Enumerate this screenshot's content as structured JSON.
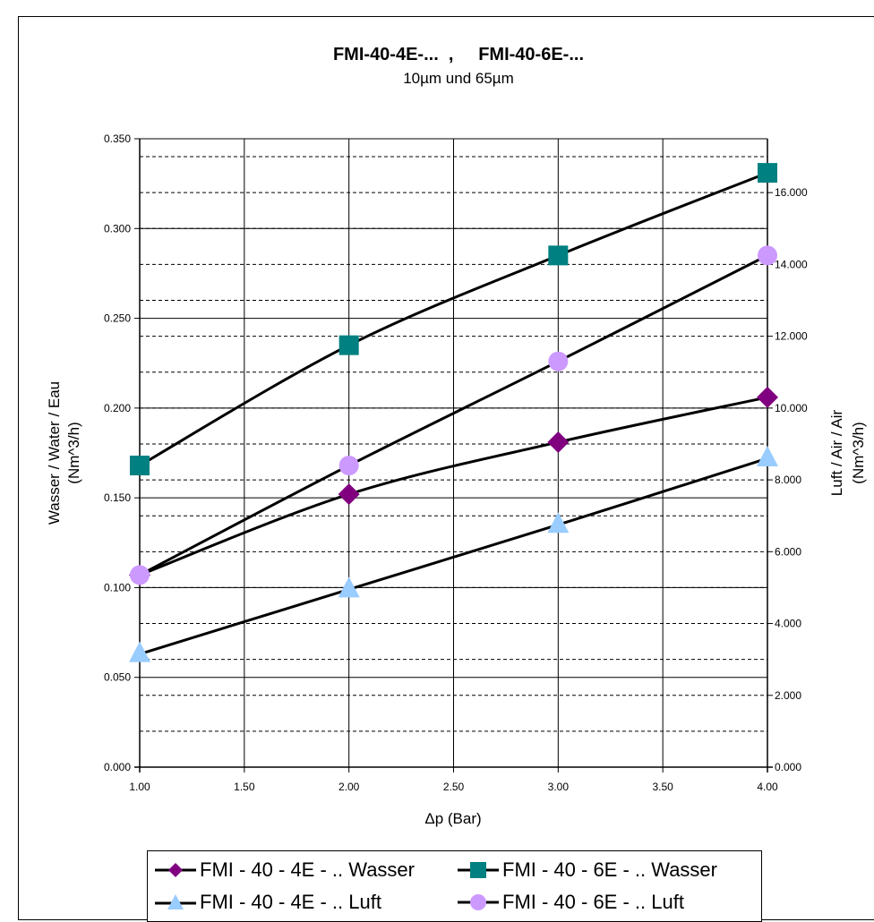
{
  "chart_data": {
    "type": "line",
    "title": "FMI-40-4E-...  ,     FMI-40-6E-...",
    "subtitle": "10µm und 65µm",
    "xlabel": "Δp (Bar)",
    "ylabel": "Wasser / Water / Eau",
    "ylabel_unit": "(Nm^3/h)",
    "y2label": "Luft / Air / Air",
    "y2label_unit": "(Nm^3/h)",
    "xlim": [
      1.0,
      4.0
    ],
    "ylim": [
      0,
      0.35
    ],
    "y2lim": [
      0,
      17.5
    ],
    "x_ticks": [
      "1.00",
      "1.50",
      "2.00",
      "2.50",
      "3.00",
      "3.50",
      "4.00"
    ],
    "y_ticks": [
      "0.000",
      "0.050",
      "0.100",
      "0.150",
      "0.200",
      "0.250",
      "0.300",
      "0.350"
    ],
    "y2_ticks": [
      "0.000",
      "2.000",
      "4.000",
      "6.000",
      "8.000",
      "10.000",
      "12.000",
      "14.000",
      "16.000"
    ],
    "grid": true,
    "legend_position": "bottom",
    "series": [
      {
        "name": "FMI - 40 - 4E - .. Wasser",
        "axis": "left",
        "marker": "diamond",
        "color": "#800080",
        "x": [
          1,
          2,
          3,
          4
        ],
        "y": [
          0.107,
          0.152,
          0.181,
          0.206
        ]
      },
      {
        "name": "FMI - 40 - 6E - .. Wasser",
        "axis": "left",
        "marker": "square",
        "color": "#008080",
        "x": [
          1,
          2,
          3,
          4
        ],
        "y": [
          0.168,
          0.235,
          0.285,
          0.331
        ]
      },
      {
        "name": "FMI - 40 - 4E - .. Luft",
        "axis": "right",
        "marker": "triangle",
        "color": "#99ccff",
        "x": [
          1,
          2,
          3,
          4
        ],
        "y": [
          3.15,
          4.95,
          6.75,
          8.6
        ]
      },
      {
        "name": "FMI - 40 - 6E - .. Luft",
        "axis": "right",
        "marker": "circle",
        "color": "#cc99ff",
        "x": [
          1,
          2,
          3,
          4
        ],
        "y": [
          5.35,
          8.4,
          11.3,
          14.25
        ]
      }
    ]
  }
}
